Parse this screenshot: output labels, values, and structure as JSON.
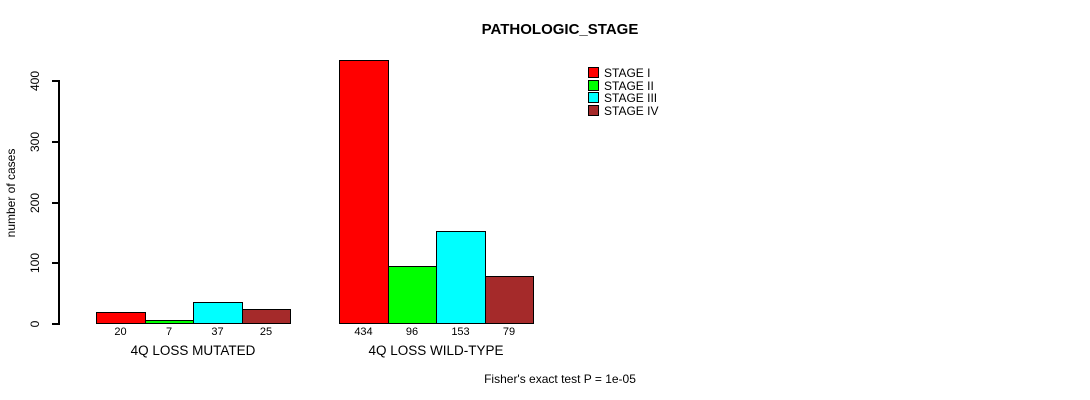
{
  "chart_data": {
    "type": "bar",
    "title": "PATHOLOGIC_STAGE",
    "ylabel": "number of cases",
    "xlabel": "",
    "ylim": [
      0,
      440
    ],
    "yticks": [
      0,
      100,
      200,
      300,
      400
    ],
    "grid": false,
    "legend_position": "top-right",
    "categories": [
      "4Q LOSS MUTATED",
      "4Q LOSS WILD-TYPE"
    ],
    "series": [
      {
        "name": "STAGE I",
        "color": "#FF0000",
        "values": [
          20,
          434
        ]
      },
      {
        "name": "STAGE II",
        "color": "#00FF00",
        "values": [
          7,
          96
        ]
      },
      {
        "name": "STAGE III",
        "color": "#00FFFF",
        "values": [
          37,
          153
        ]
      },
      {
        "name": "STAGE IV",
        "color": "#A52A2A",
        "values": [
          25,
          79
        ]
      }
    ],
    "bar_value_labels": [
      [
        "20",
        "7",
        "37",
        "25"
      ],
      [
        "434",
        "96",
        "153",
        "79"
      ]
    ],
    "footnote": "Fisher's exact test P = 1e-05"
  }
}
